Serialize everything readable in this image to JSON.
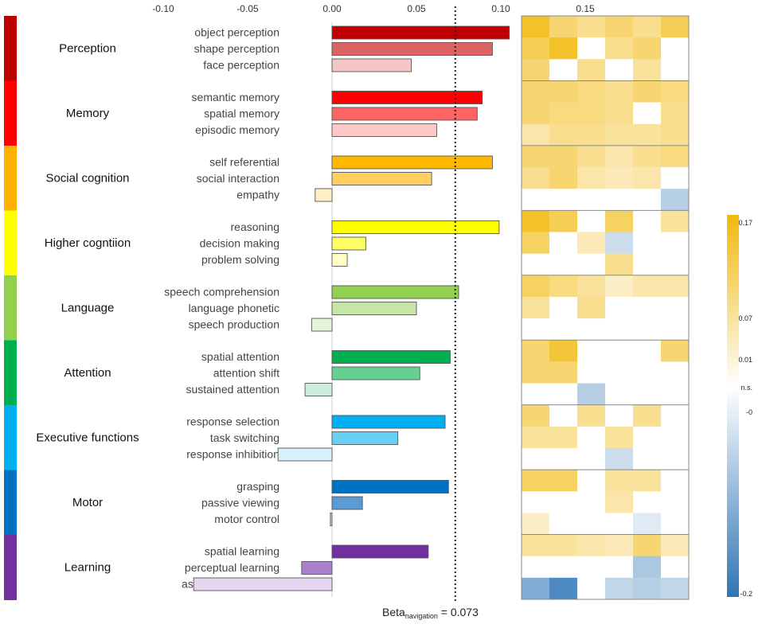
{
  "chart_data": {
    "type": "bar",
    "orientation": "horizontal",
    "x_ticks": [
      -0.1,
      -0.05,
      0.0,
      0.05,
      0.1,
      0.15
    ],
    "x_tick_labels": [
      "-0.10",
      "-0.05",
      "0.00",
      "0.05",
      "0.10",
      "0.15"
    ],
    "xlim": [
      -0.12,
      0.17
    ],
    "reference_line": {
      "value": 0.073,
      "label_main": "Beta",
      "label_sub": "navigation",
      "label_tail": "= 0.073"
    },
    "domains": [
      {
        "name": "Perception",
        "color": "#C00000",
        "tasks": [
          {
            "label": "object perception",
            "value": 0.105,
            "color": "#C00000"
          },
          {
            "label": "shape perception",
            "value": 0.095,
            "color": "#DD6464"
          },
          {
            "label": "face perception",
            "value": 0.047,
            "color": "#F5C6C6"
          }
        ]
      },
      {
        "name": "Memory",
        "color": "#FF0000",
        "tasks": [
          {
            "label": "semantic memory",
            "value": 0.089,
            "color": "#FF0000"
          },
          {
            "label": "spatial memory",
            "value": 0.086,
            "color": "#FF6464"
          },
          {
            "label": "episodic memory",
            "value": 0.062,
            "color": "#FFC8C8"
          }
        ]
      },
      {
        "name": "Social cognition",
        "color": "#FFB300",
        "tasks": [
          {
            "label": "self referential",
            "value": 0.095,
            "color": "#FFB800"
          },
          {
            "label": "social interaction",
            "value": 0.059,
            "color": "#FFD060"
          },
          {
            "label": "empathy",
            "value": -0.01,
            "color": "#FFEFC5"
          }
        ]
      },
      {
        "name": "Higher cogntiion",
        "color": "#FFFF00",
        "tasks": [
          {
            "label": "reasoning",
            "value": 0.099,
            "color": "#FFFF00"
          },
          {
            "label": "decision making",
            "value": 0.02,
            "color": "#FFFF66"
          },
          {
            "label": "problem solving",
            "value": 0.009,
            "color": "#FFFFC4"
          }
        ]
      },
      {
        "name": "Language",
        "color": "#92D050",
        "tasks": [
          {
            "label": "speech comprehension",
            "value": 0.075,
            "color": "#92D050"
          },
          {
            "label": "language phonetic",
            "value": 0.05,
            "color": "#C5E6A6"
          },
          {
            "label": "speech production",
            "value": -0.012,
            "color": "#E7F4DA"
          }
        ]
      },
      {
        "name": "Attention",
        "color": "#00B050",
        "tasks": [
          {
            "label": "spatial attention",
            "value": 0.07,
            "color": "#00B050"
          },
          {
            "label": "attention shift",
            "value": 0.052,
            "color": "#66CF92"
          },
          {
            "label": "sustained attention",
            "value": -0.016,
            "color": "#CCEEDB"
          }
        ]
      },
      {
        "name": "Executive functions",
        "color": "#00B0F0",
        "tasks": [
          {
            "label": "response selection",
            "value": 0.067,
            "color": "#00B0F0"
          },
          {
            "label": "task switching",
            "value": 0.039,
            "color": "#66D0F6"
          },
          {
            "label": "response inhibition",
            "value": -0.032,
            "color": "#D6F1FC"
          }
        ]
      },
      {
        "name": "Motor",
        "color": "#0070C0",
        "tasks": [
          {
            "label": "grasping",
            "value": 0.069,
            "color": "#0070C0"
          },
          {
            "label": "passive viewing",
            "value": 0.018,
            "color": "#5B9BD5"
          },
          {
            "label": "motor control",
            "value": -0.001,
            "color": "#BDD7EE"
          }
        ]
      },
      {
        "name": "Learning",
        "color": "#7030A0",
        "tasks": [
          {
            "label": "spatial learning",
            "value": 0.057,
            "color": "#7030A0"
          },
          {
            "label": "perceptual learning",
            "value": -0.018,
            "color": "#A880CC"
          },
          {
            "label": "associative learning",
            "value": -0.082,
            "color": "#E3D6EE"
          }
        ]
      }
    ],
    "heatmap": {
      "columns": 6,
      "rows": [
        [
          0.15,
          0.1,
          0.08,
          0.1,
          0.08,
          0.12
        ],
        [
          0.12,
          0.15,
          0.0,
          0.08,
          0.1,
          0.0
        ],
        [
          0.1,
          0.0,
          0.08,
          0.0,
          0.07,
          0.0
        ],
        [
          0.1,
          0.1,
          0.09,
          0.08,
          0.1,
          0.09
        ],
        [
          0.1,
          0.09,
          0.09,
          0.08,
          0.0,
          0.08
        ],
        [
          0.06,
          0.08,
          0.08,
          0.07,
          0.07,
          0.08
        ],
        [
          0.1,
          0.1,
          0.08,
          0.06,
          0.08,
          0.09
        ],
        [
          0.08,
          0.1,
          0.06,
          0.05,
          0.06,
          0.0
        ],
        [
          0.0,
          0.0,
          0.0,
          0.0,
          0.0,
          -0.07
        ],
        [
          0.15,
          0.12,
          0.0,
          0.11,
          0.0,
          0.07
        ],
        [
          0.11,
          0.0,
          0.05,
          -0.05,
          0.0,
          0.0
        ],
        [
          0.0,
          0.0,
          0.0,
          0.08,
          0.0,
          0.0
        ],
        [
          0.11,
          0.09,
          0.07,
          0.04,
          0.06,
          0.06
        ],
        [
          0.07,
          0.0,
          0.08,
          0.0,
          0.0,
          0.0
        ],
        [
          0.0,
          0.0,
          0.0,
          0.0,
          0.0,
          0.0
        ],
        [
          0.1,
          0.14,
          0.0,
          0.0,
          0.0,
          0.1
        ],
        [
          0.1,
          0.1,
          0.0,
          0.0,
          0.0,
          0.0
        ],
        [
          0.0,
          0.0,
          -0.07,
          0.0,
          0.0,
          0.0
        ],
        [
          0.1,
          0.0,
          0.08,
          0.0,
          0.08,
          0.0
        ],
        [
          0.07,
          0.07,
          0.0,
          0.07,
          0.0,
          0.0
        ],
        [
          0.0,
          0.0,
          0.0,
          -0.05,
          0.0,
          0.0
        ],
        [
          0.11,
          0.11,
          0.0,
          0.07,
          0.07,
          0.0
        ],
        [
          0.0,
          0.0,
          0.0,
          0.06,
          0.0,
          0.0
        ],
        [
          0.04,
          0.0,
          0.0,
          0.0,
          -0.03,
          0.0
        ],
        [
          0.07,
          0.07,
          0.06,
          0.05,
          0.1,
          0.05
        ],
        [
          0.0,
          0.0,
          0.0,
          0.0,
          -0.08,
          0.0
        ],
        [
          -0.12,
          -0.17,
          0.0,
          -0.06,
          -0.07,
          -0.06
        ]
      ]
    },
    "colorbar": {
      "min": -0.2,
      "max": 0.17,
      "positive_color": "#F1B90E",
      "negative_color": "#2E75B6",
      "ticks": [
        {
          "value": 0.17,
          "label": "0.17"
        },
        {
          "value": 0.07,
          "label": "0.07"
        },
        {
          "value": 0.01,
          "label": "0.01"
        },
        {
          "value": 0.0,
          "label": "n.s."
        },
        {
          "value": -0.01,
          "label": "-0"
        },
        {
          "value": -0.2,
          "label": "-0.2"
        }
      ]
    }
  }
}
